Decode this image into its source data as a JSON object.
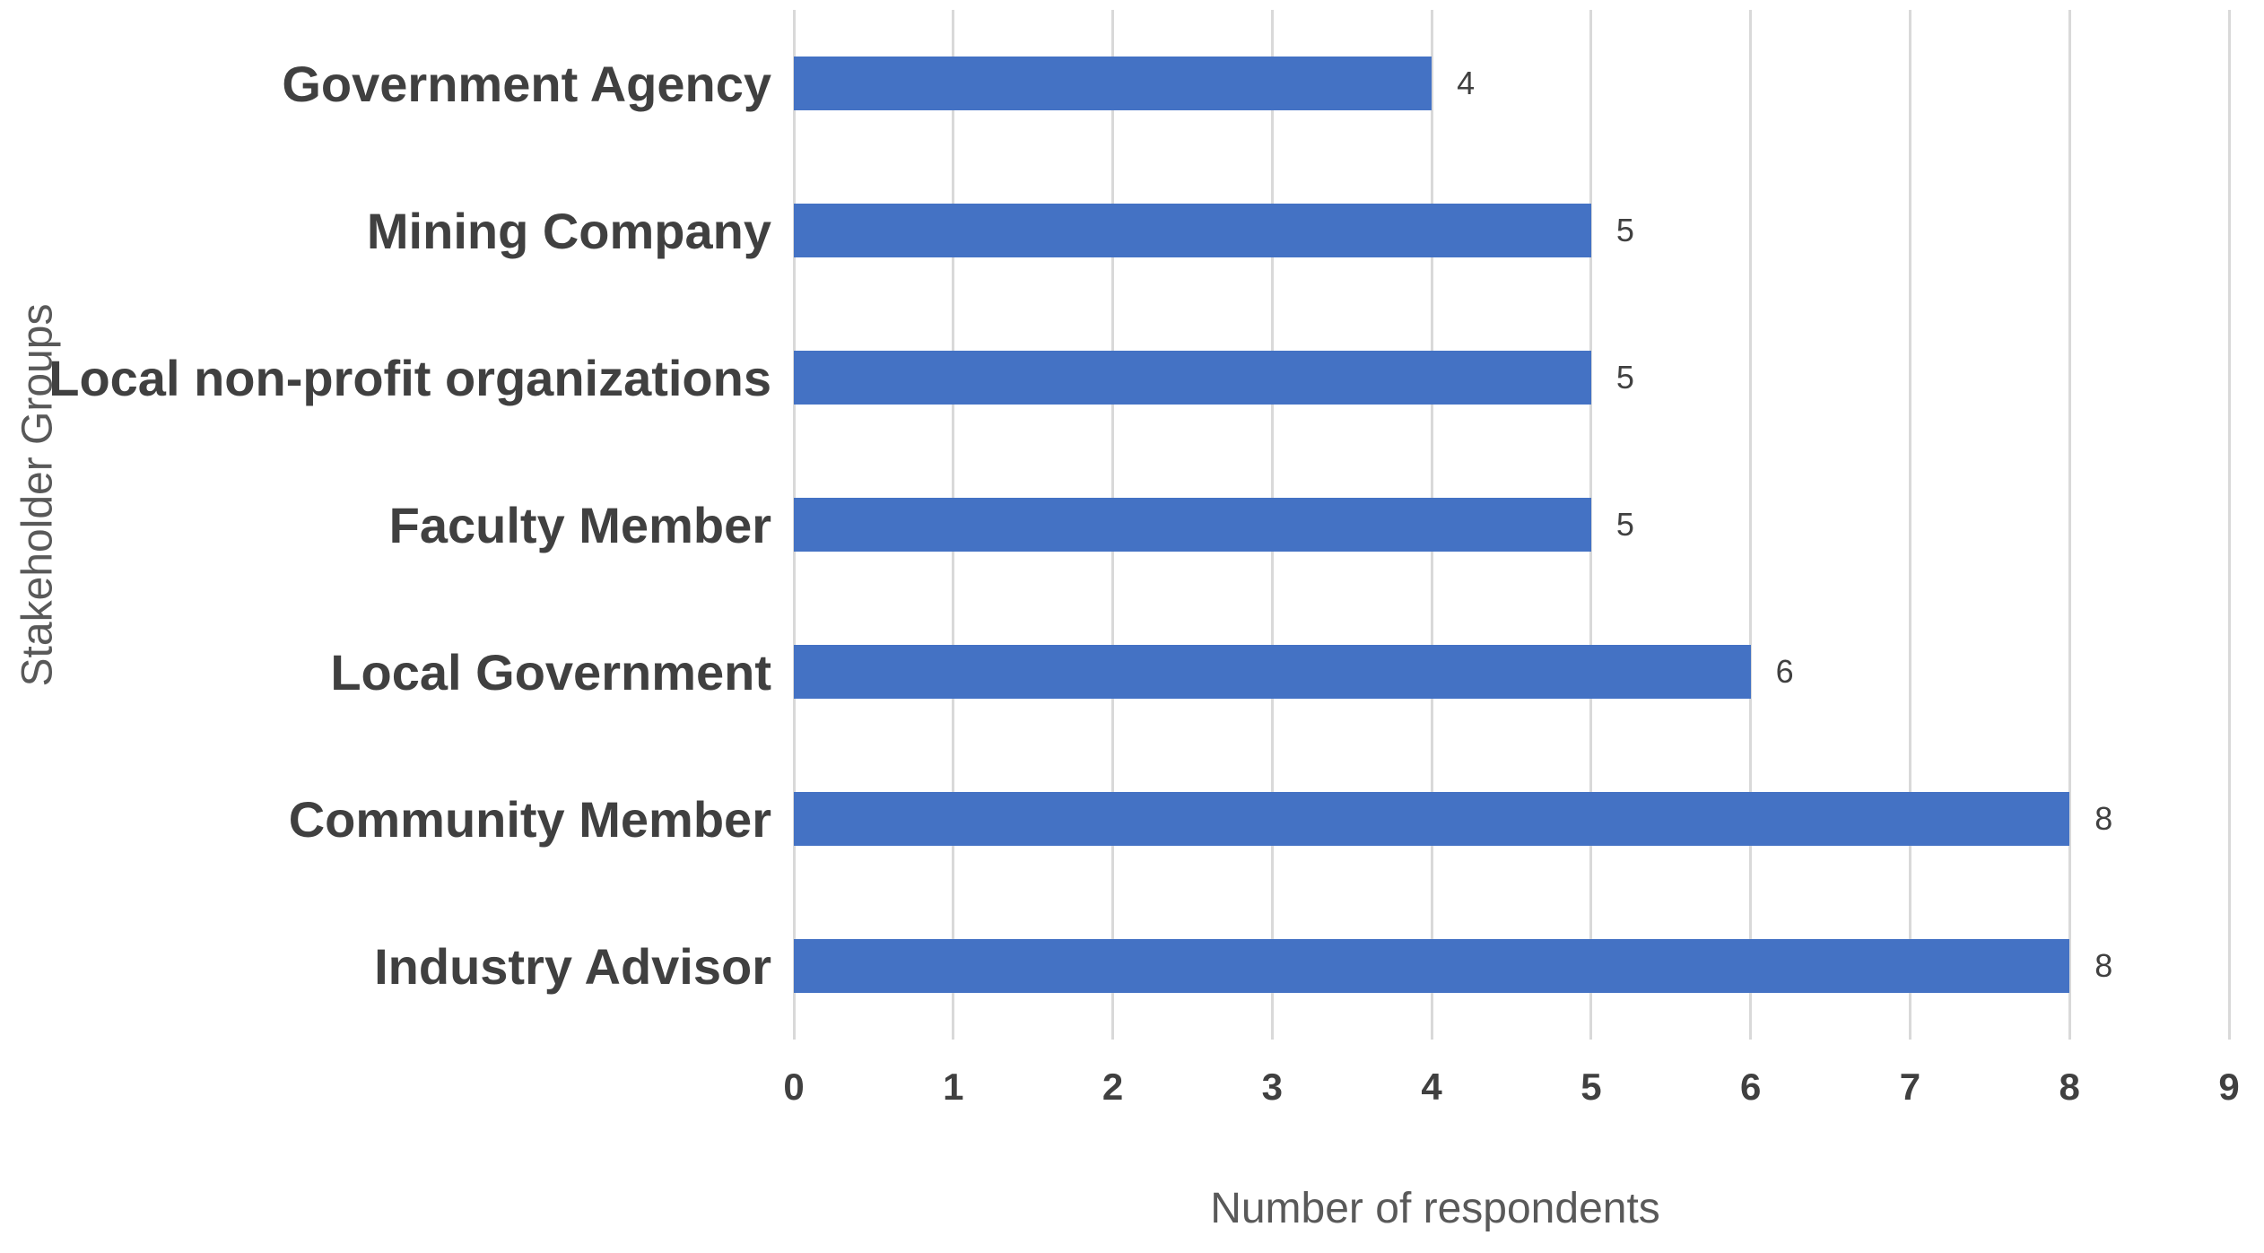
{
  "chart_data": {
    "type": "bar",
    "orientation": "horizontal",
    "title": "",
    "categories": [
      "Government Agency",
      "Mining Company",
      "Local non-profit organizations",
      "Faculty Member",
      "Local Government",
      "Community Member",
      "Industry Advisor"
    ],
    "values": [
      4,
      5,
      5,
      5,
      6,
      8,
      8
    ],
    "data_labels": [
      "4",
      "5",
      "5",
      "5",
      "6",
      "8",
      "8"
    ],
    "xlabel": "Number of respondents",
    "ylabel": "Stakeholder Groups",
    "xlim": [
      0,
      9
    ],
    "xticks": [
      "0",
      "1",
      "2",
      "3",
      "4",
      "5",
      "6",
      "7",
      "8",
      "9"
    ],
    "grid": "vertical-gridlines-on",
    "legend": "none",
    "colors": {
      "bar_fill": "#4472C4",
      "gridline": "#D9D9D9",
      "category_label_text": "#404040",
      "tick_label_text": "#404040",
      "value_label_text": "#404040",
      "axis_title_text": "#595959",
      "background": "#FFFFFF"
    }
  }
}
